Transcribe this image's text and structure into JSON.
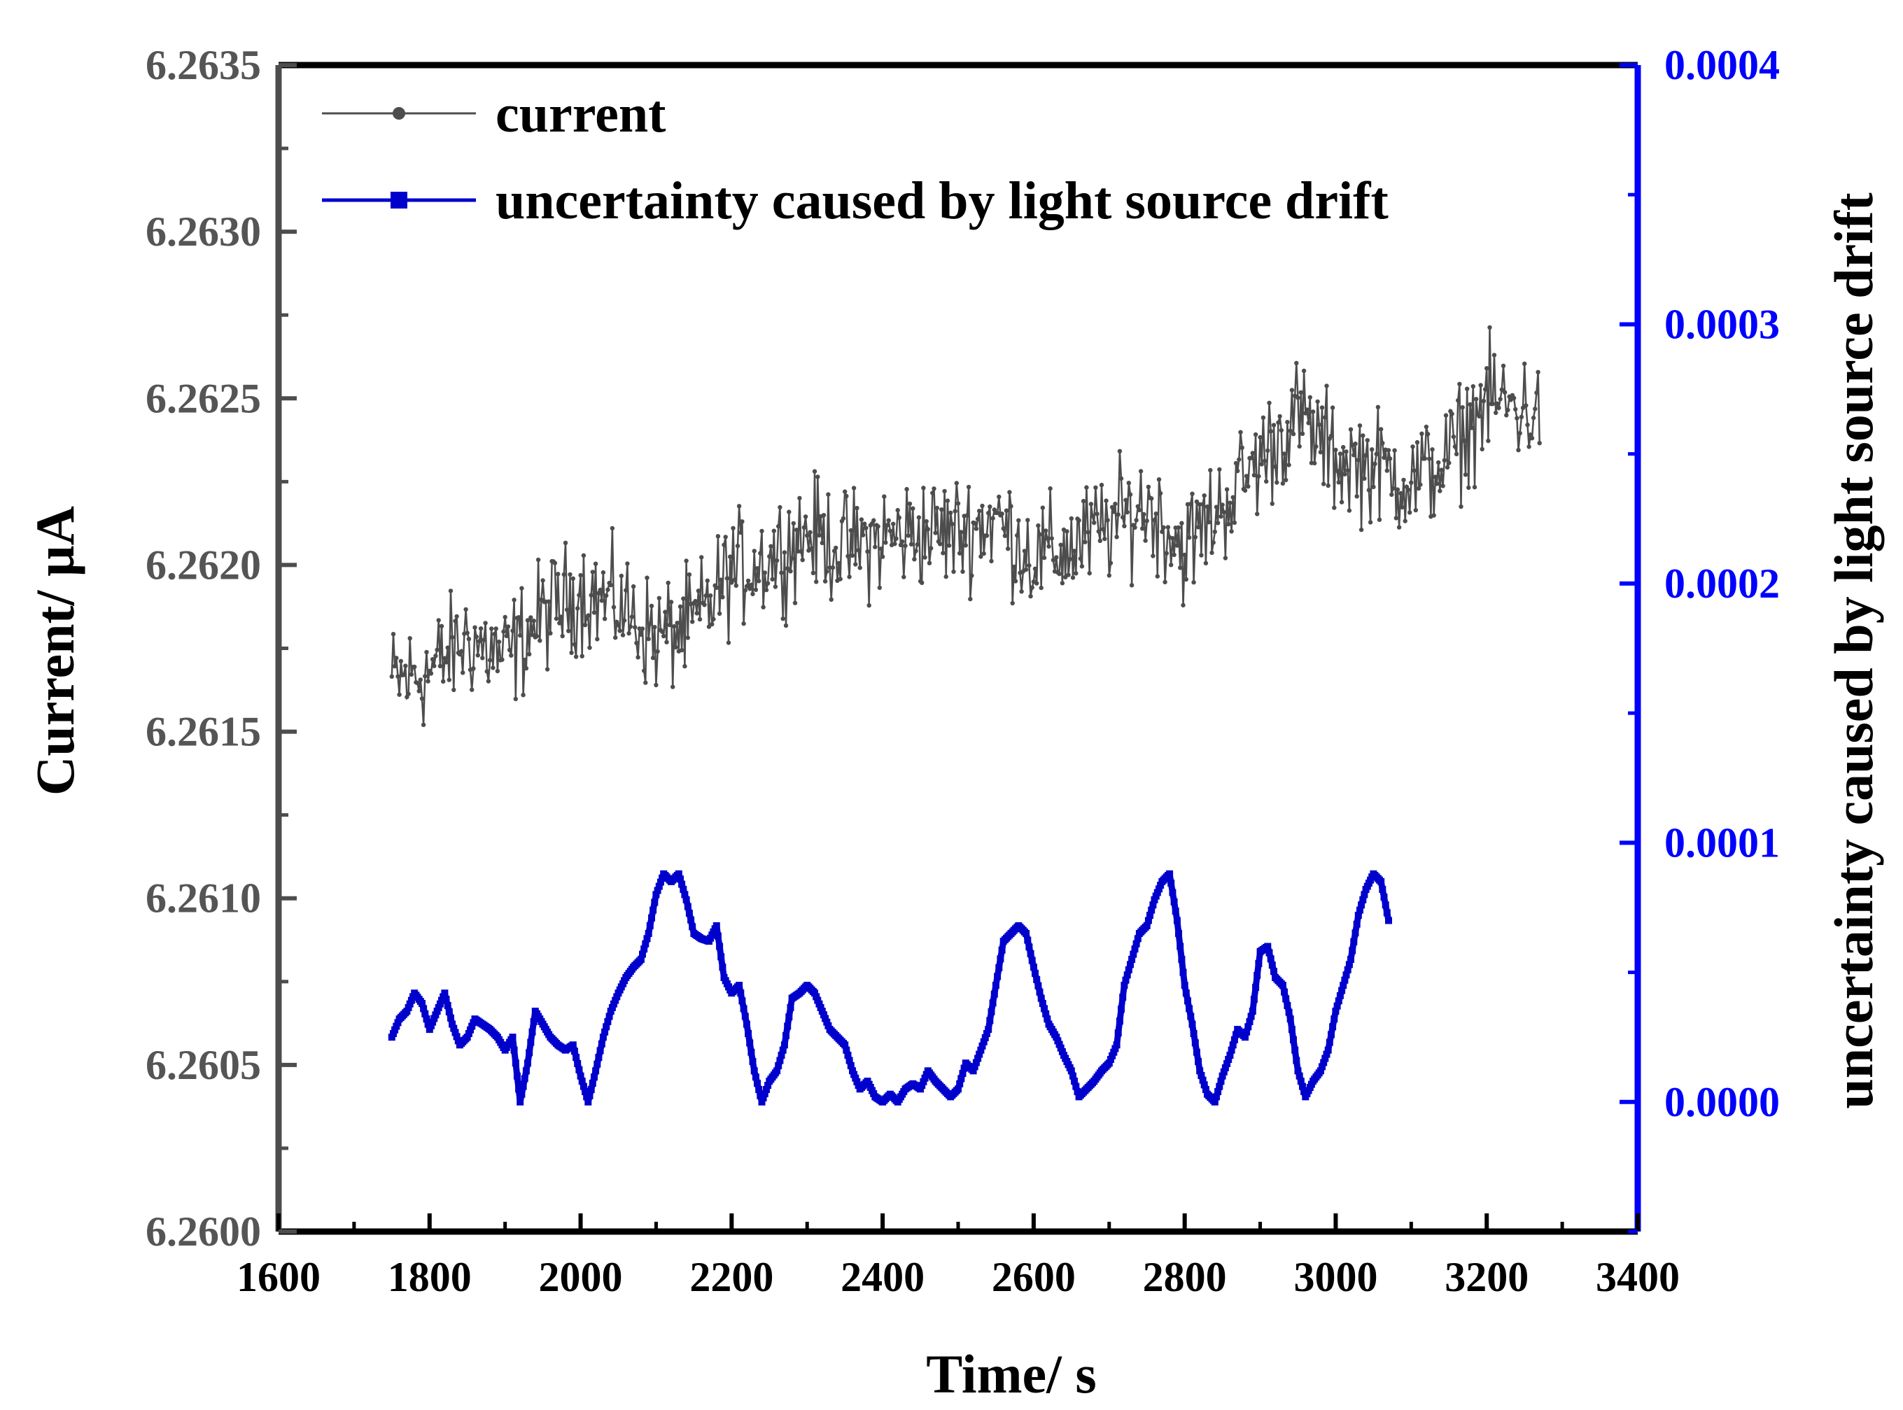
{
  "chart_data": {
    "type": "line",
    "title": "",
    "xlabel": "Time/ s",
    "ylabel": "Current/ µA",
    "y2label": "uncertainty caused by light source drift",
    "xlim": [
      1600,
      3400
    ],
    "ylim": [
      6.26,
      6.2635
    ],
    "y2lim": [
      -5e-05,
      0.0004
    ],
    "x_ticks": [
      "1600",
      "1800",
      "2000",
      "2200",
      "2400",
      "2600",
      "2800",
      "3000",
      "3200",
      "3400"
    ],
    "y_ticks": [
      "6.2600",
      "6.2605",
      "6.2610",
      "6.2615",
      "6.2620",
      "6.2625",
      "6.2630",
      "6.2635"
    ],
    "y2_ticks": [
      "0.0000",
      "0.0001",
      "0.0002",
      "0.0003",
      "0.0004"
    ],
    "legend_position": "top-left",
    "series": [
      {
        "name": "current",
        "axis": "left",
        "color": "#4d4d4d",
        "marker": "circle",
        "x_start": 1750,
        "x_end": 3270,
        "trend": [
          [
            1750,
            6.26165
          ],
          [
            1800,
            6.26168
          ],
          [
            1850,
            6.26178
          ],
          [
            1900,
            6.26172
          ],
          [
            1950,
            6.26185
          ],
          [
            2000,
            6.26192
          ],
          [
            2050,
            6.26188
          ],
          [
            2100,
            6.26178
          ],
          [
            2150,
            6.26182
          ],
          [
            2200,
            6.26198
          ],
          [
            2250,
            6.26202
          ],
          [
            2300,
            6.2621
          ],
          [
            2350,
            6.26205
          ],
          [
            2400,
            6.26208
          ],
          [
            2450,
            6.2621
          ],
          [
            2500,
            6.2621
          ],
          [
            2550,
            6.26214
          ],
          [
            2600,
            6.26202
          ],
          [
            2650,
            6.26205
          ],
          [
            2700,
            6.26212
          ],
          [
            2750,
            6.26218
          ],
          [
            2800,
            6.26205
          ],
          [
            2850,
            6.26218
          ],
          [
            2900,
            6.26232
          ],
          [
            2950,
            6.26245
          ],
          [
            3000,
            6.26232
          ],
          [
            3050,
            6.2623
          ],
          [
            3100,
            6.26225
          ],
          [
            3150,
            6.26232
          ],
          [
            3200,
            6.2625
          ],
          [
            3270,
            6.26245
          ]
        ],
        "noise_amplitude": 0.00025
      },
      {
        "name": "uncertainty caused by light source drift",
        "axis": "right",
        "color": "#0000cc",
        "marker": "square",
        "points": [
          [
            1750,
            2.5e-05
          ],
          [
            1760,
            3.2e-05
          ],
          [
            1770,
            3.5e-05
          ],
          [
            1780,
            4.2e-05
          ],
          [
            1790,
            3.8e-05
          ],
          [
            1800,
            2.8e-05
          ],
          [
            1810,
            3.5e-05
          ],
          [
            1820,
            4.2e-05
          ],
          [
            1830,
            3e-05
          ],
          [
            1840,
            2.2e-05
          ],
          [
            1850,
            2.5e-05
          ],
          [
            1860,
            3.2e-05
          ],
          [
            1870,
            3e-05
          ],
          [
            1880,
            2.8e-05
          ],
          [
            1890,
            2.5e-05
          ],
          [
            1900,
            2e-05
          ],
          [
            1910,
            2.5e-05
          ],
          [
            1920,
            0.0
          ],
          [
            1930,
            1.5e-05
          ],
          [
            1940,
            3.5e-05
          ],
          [
            1950,
            3e-05
          ],
          [
            1960,
            2.5e-05
          ],
          [
            1970,
            2.2e-05
          ],
          [
            1980,
            2e-05
          ],
          [
            1990,
            2.2e-05
          ],
          [
            2000,
            1e-05
          ],
          [
            2010,
            0.0
          ],
          [
            2020,
            1.2e-05
          ],
          [
            2030,
            2.5e-05
          ],
          [
            2040,
            3.5e-05
          ],
          [
            2050,
            4.2e-05
          ],
          [
            2060,
            4.8e-05
          ],
          [
            2070,
            5.2e-05
          ],
          [
            2080,
            5.5e-05
          ],
          [
            2090,
            6.5e-05
          ],
          [
            2100,
            8e-05
          ],
          [
            2110,
            8.8e-05
          ],
          [
            2120,
            8.5e-05
          ],
          [
            2130,
            8.8e-05
          ],
          [
            2140,
            7.8e-05
          ],
          [
            2150,
            6.5e-05
          ],
          [
            2160,
            6.3e-05
          ],
          [
            2170,
            6.2e-05
          ],
          [
            2180,
            6.8e-05
          ],
          [
            2190,
            4.8e-05
          ],
          [
            2200,
            4.2e-05
          ],
          [
            2210,
            4.5e-05
          ],
          [
            2220,
            3e-05
          ],
          [
            2230,
            1.2e-05
          ],
          [
            2240,
            0.0
          ],
          [
            2250,
            8e-06
          ],
          [
            2260,
            1.2e-05
          ],
          [
            2270,
            2.2e-05
          ],
          [
            2280,
            4e-05
          ],
          [
            2290,
            4.2e-05
          ],
          [
            2300,
            4.5e-05
          ],
          [
            2310,
            4.2e-05
          ],
          [
            2320,
            3.5e-05
          ],
          [
            2330,
            2.8e-05
          ],
          [
            2340,
            2.5e-05
          ],
          [
            2350,
            2.2e-05
          ],
          [
            2360,
            1.2e-05
          ],
          [
            2370,
            5e-06
          ],
          [
            2380,
            8e-06
          ],
          [
            2390,
            2e-06
          ],
          [
            2400,
            0.0
          ],
          [
            2410,
            3e-06
          ],
          [
            2420,
            0.0
          ],
          [
            2430,
            5e-06
          ],
          [
            2440,
            7e-06
          ],
          [
            2450,
            5e-06
          ],
          [
            2460,
            1.2e-05
          ],
          [
            2470,
            8e-06
          ],
          [
            2480,
            5e-06
          ],
          [
            2490,
            2e-06
          ],
          [
            2500,
            5e-06
          ],
          [
            2510,
            1.5e-05
          ],
          [
            2520,
            1.2e-05
          ],
          [
            2530,
            2e-05
          ],
          [
            2540,
            2.8e-05
          ],
          [
            2550,
            4.5e-05
          ],
          [
            2560,
            6.2e-05
          ],
          [
            2570,
            6.5e-05
          ],
          [
            2580,
            6.8e-05
          ],
          [
            2590,
            6.5e-05
          ],
          [
            2600,
            5.2e-05
          ],
          [
            2610,
            4e-05
          ],
          [
            2620,
            3e-05
          ],
          [
            2630,
            2.5e-05
          ],
          [
            2640,
            1.8e-05
          ],
          [
            2650,
            1.2e-05
          ],
          [
            2660,
            2e-06
          ],
          [
            2670,
            5e-06
          ],
          [
            2680,
            8e-06
          ],
          [
            2690,
            1.2e-05
          ],
          [
            2700,
            1.5e-05
          ],
          [
            2710,
            2.2e-05
          ],
          [
            2720,
            4.5e-05
          ],
          [
            2730,
            5.5e-05
          ],
          [
            2740,
            6.5e-05
          ],
          [
            2750,
            6.8e-05
          ],
          [
            2760,
            7.8e-05
          ],
          [
            2770,
            8.5e-05
          ],
          [
            2780,
            8.8e-05
          ],
          [
            2790,
            7e-05
          ],
          [
            2800,
            4.5e-05
          ],
          [
            2810,
            3e-05
          ],
          [
            2820,
            1.2e-05
          ],
          [
            2830,
            3e-06
          ],
          [
            2840,
            0.0
          ],
          [
            2850,
            1e-05
          ],
          [
            2860,
            1.8e-05
          ],
          [
            2870,
            2.8e-05
          ],
          [
            2880,
            2.5e-05
          ],
          [
            2890,
            3.5e-05
          ],
          [
            2900,
            5.8e-05
          ],
          [
            2910,
            6e-05
          ],
          [
            2920,
            4.8e-05
          ],
          [
            2930,
            4.5e-05
          ],
          [
            2940,
            3.2e-05
          ],
          [
            2950,
            1.2e-05
          ],
          [
            2960,
            2e-06
          ],
          [
            2970,
            8e-06
          ],
          [
            2980,
            1.2e-05
          ],
          [
            2990,
            2e-05
          ],
          [
            3000,
            3.5e-05
          ],
          [
            3010,
            4.5e-05
          ],
          [
            3020,
            5.5e-05
          ],
          [
            3030,
            7.2e-05
          ],
          [
            3040,
            8.2e-05
          ],
          [
            3050,
            8.8e-05
          ],
          [
            3060,
            8.5e-05
          ],
          [
            3070,
            7e-05
          ]
        ]
      }
    ]
  }
}
